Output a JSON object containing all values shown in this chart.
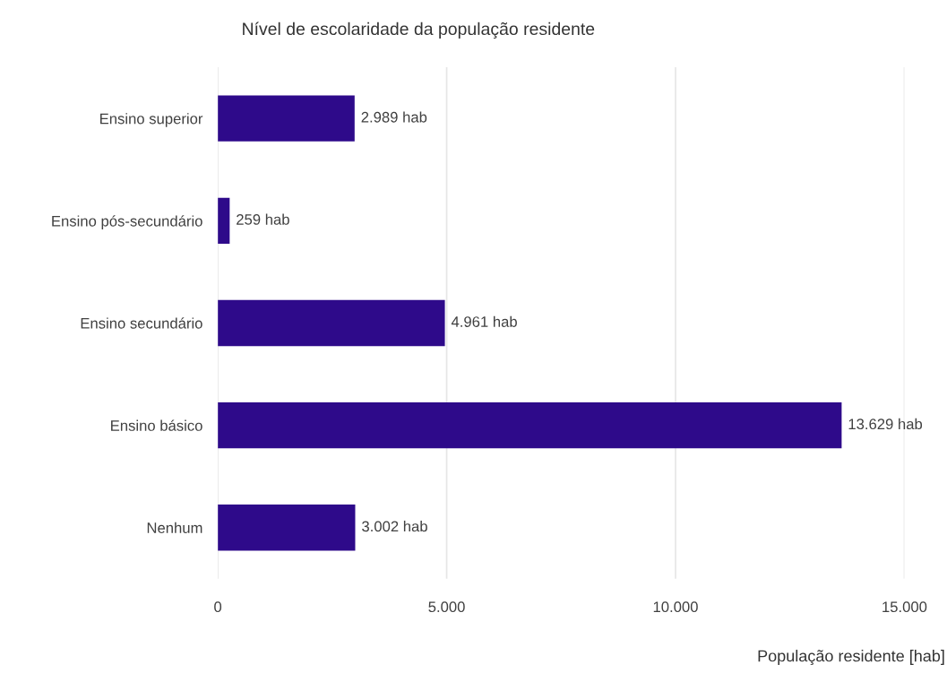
{
  "chart_data": {
    "type": "bar",
    "orientation": "horizontal",
    "title": "Nível de escolaridade da população residente",
    "xlabel": "População residente [hab]",
    "categories": [
      "Ensino superior",
      "Ensino pós-secundário",
      "Ensino secundário",
      "Ensino básico",
      "Nenhum"
    ],
    "values": [
      2989,
      259,
      4961,
      13629,
      3002
    ],
    "value_labels": [
      "2.989 hab",
      "259 hab",
      "4.961 hab",
      "13.629 hab",
      "3.002 hab"
    ],
    "color": "#2e0a8a",
    "xlim": [
      0,
      15000
    ],
    "xticks": [
      0,
      {
        "value": 5000,
        "label": "5.000"
      },
      {
        "value": 10000,
        "label": "10.000"
      },
      {
        "value": 15000,
        "label": "15.000"
      }
    ],
    "grid": "x",
    "legend": false
  }
}
